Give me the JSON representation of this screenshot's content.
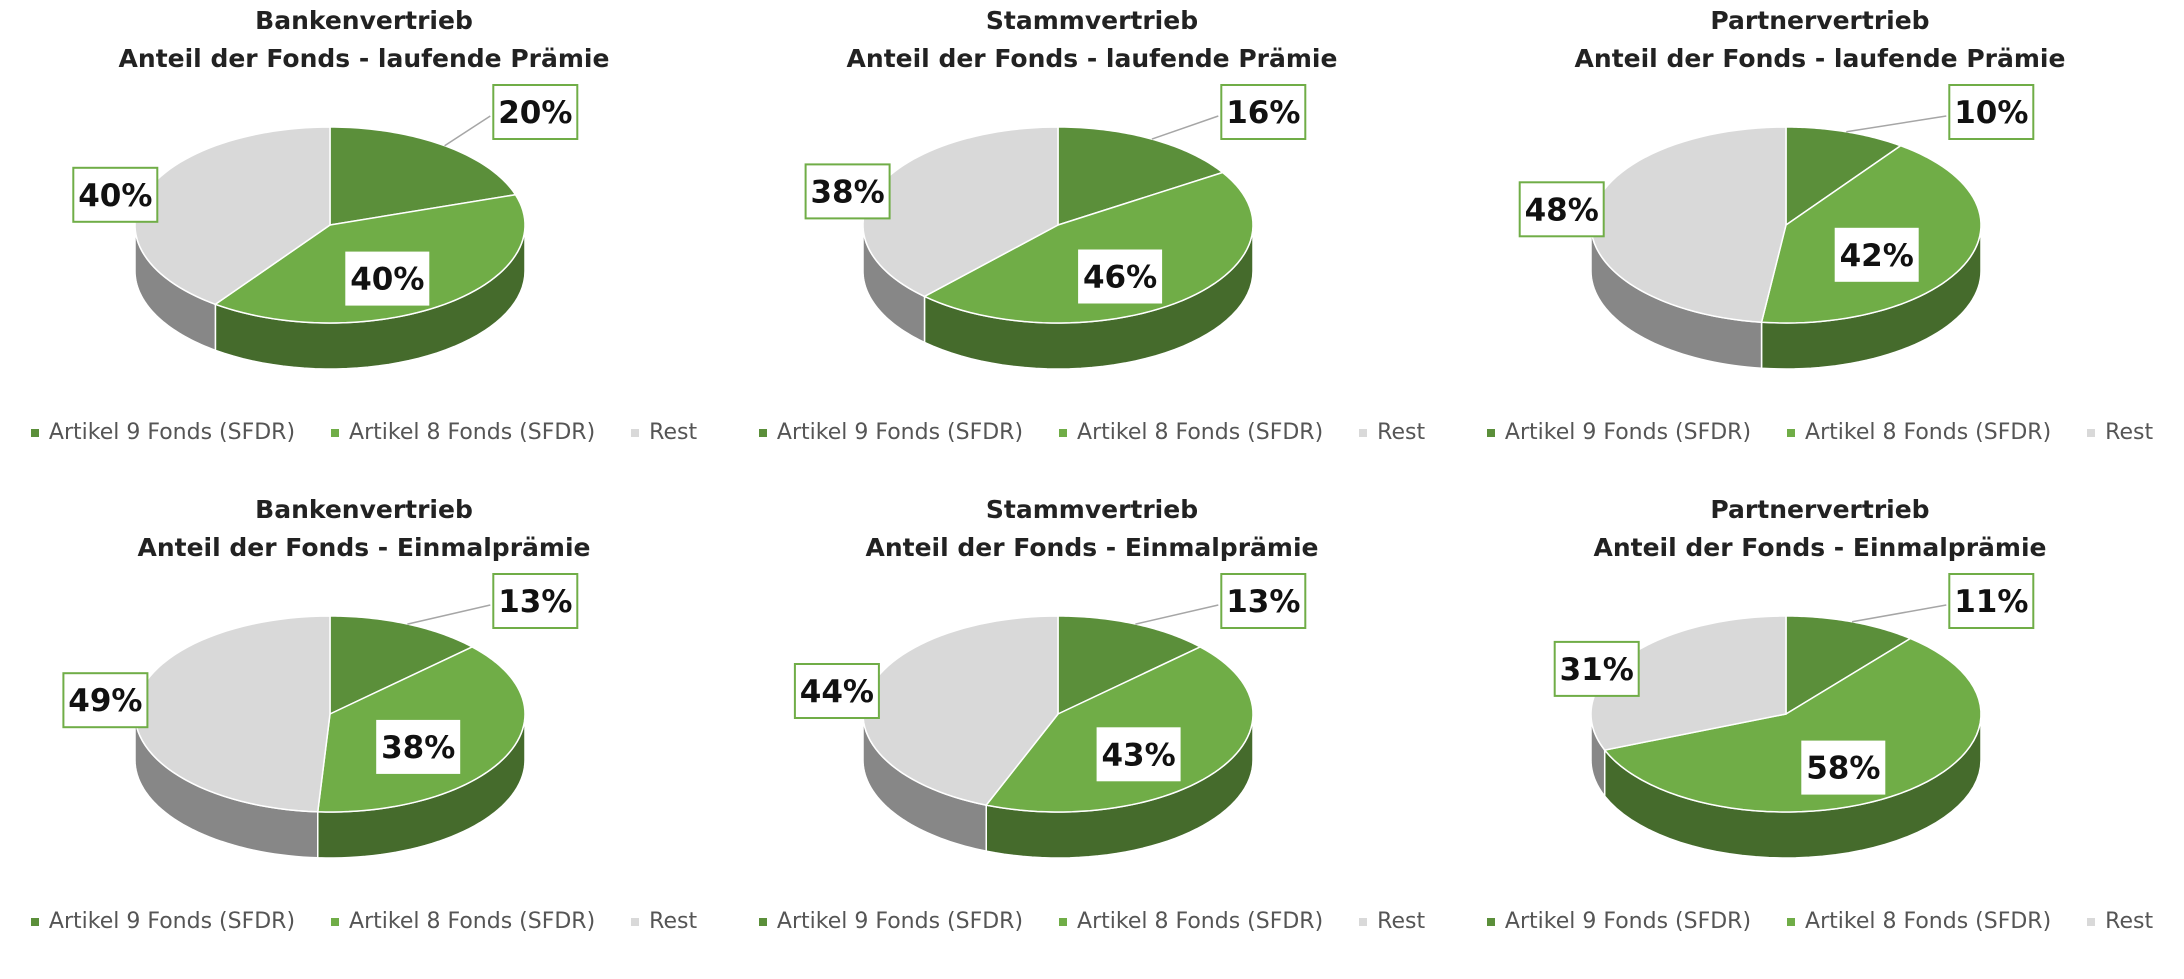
{
  "colors": {
    "artikel9": "#5b8f3a",
    "artikel8": "#70ad47",
    "rest": "#d9d9d9",
    "box_border": "#70ad47"
  },
  "chart_data": [
    {
      "type": "pie",
      "title": "Bankenvertrieb",
      "subtitle": "Anteil der Fonds - laufende Prämie",
      "categories": [
        "Artikel 9 Fonds (SFDR)",
        "Artikel 8 Fonds (SFDR)",
        "Rest"
      ],
      "values": [
        20,
        40,
        40
      ],
      "labels": [
        "20%",
        "40%",
        "40%"
      ],
      "legend": "bottom"
    },
    {
      "type": "pie",
      "title": "Stammvertrieb",
      "subtitle": "Anteil der Fonds - laufende Prämie",
      "categories": [
        "Artikel 9 Fonds (SFDR)",
        "Artikel 8 Fonds (SFDR)",
        "Rest"
      ],
      "values": [
        16,
        46,
        38
      ],
      "labels": [
        "16%",
        "46%",
        "38%"
      ],
      "legend": "bottom"
    },
    {
      "type": "pie",
      "title": "Partnervertrieb",
      "subtitle": "Anteil der Fonds - laufende Prämie",
      "categories": [
        "Artikel 9 Fonds (SFDR)",
        "Artikel 8 Fonds (SFDR)",
        "Rest"
      ],
      "values": [
        10,
        42,
        48
      ],
      "labels": [
        "10%",
        "42%",
        "48%"
      ],
      "legend": "bottom"
    },
    {
      "type": "pie",
      "title": "Bankenvertrieb",
      "subtitle": "Anteil der Fonds - Einmalprämie",
      "categories": [
        "Artikel 9 Fonds (SFDR)",
        "Artikel 8 Fonds (SFDR)",
        "Rest"
      ],
      "values": [
        13,
        38,
        49
      ],
      "labels": [
        "13%",
        "38%",
        "49%"
      ],
      "legend": "bottom"
    },
    {
      "type": "pie",
      "title": "Stammvertrieb",
      "subtitle": "Anteil der Fonds - Einmalprämie",
      "categories": [
        "Artikel 9 Fonds (SFDR)",
        "Artikel 8 Fonds (SFDR)",
        "Rest"
      ],
      "values": [
        13,
        43,
        44
      ],
      "labels": [
        "13%",
        "43%",
        "44%"
      ],
      "legend": "bottom"
    },
    {
      "type": "pie",
      "title": "Partnervertrieb",
      "subtitle": "Anteil der Fonds - Einmalprämie",
      "categories": [
        "Artikel 9 Fonds (SFDR)",
        "Artikel 8 Fonds (SFDR)",
        "Rest"
      ],
      "values": [
        11,
        58,
        31
      ],
      "labels": [
        "11%",
        "58%",
        "31%"
      ],
      "legend": "bottom"
    }
  ]
}
